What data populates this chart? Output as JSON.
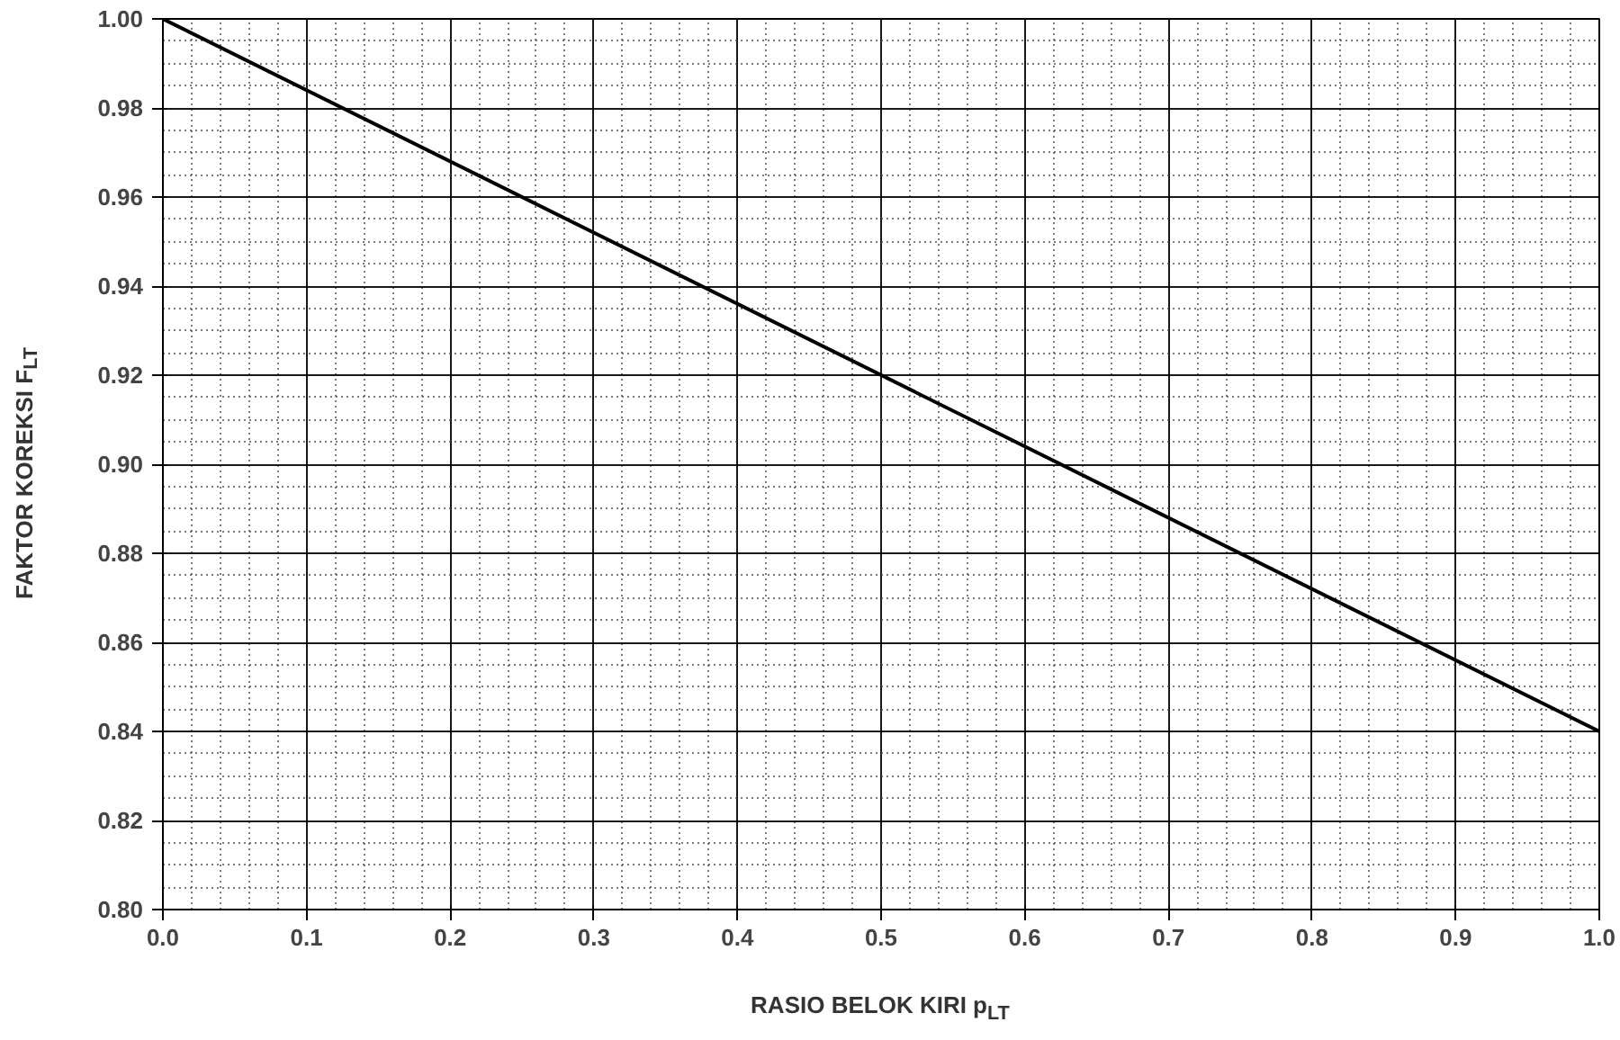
{
  "chart_data": {
    "type": "line",
    "xlabel": "RASIO BELOK KIRI p$_{LT}$",
    "ylabel": "FAKTOR KOREKSI F$_{LT}$",
    "x": [
      0.0,
      1.0
    ],
    "series": [
      {
        "color": "#000000",
        "values": [
          1.0,
          0.84
        ]
      }
    ],
    "xlim": [
      0.0,
      1.0
    ],
    "ylim": [
      0.8,
      1.0
    ],
    "xticks": [
      {
        "value": 0,
        "label": "0.0"
      },
      {
        "value": 0.1,
        "label": "0.1"
      },
      {
        "value": 0.2,
        "label": "0.2"
      },
      {
        "value": 0.3,
        "label": "0.3"
      },
      {
        "value": 0.4,
        "label": "0.4"
      },
      {
        "value": 0.5,
        "label": "0.5"
      },
      {
        "value": 0.6,
        "label": "0.6"
      },
      {
        "value": 0.7,
        "label": "0.7"
      },
      {
        "value": 0.8,
        "label": "0.8"
      },
      {
        "value": 0.9,
        "label": "0.9"
      },
      {
        "value": 1,
        "label": "1.0"
      }
    ],
    "yticks": [
      {
        "value": 0.8,
        "label": "0.80"
      },
      {
        "value": 0.82,
        "label": "0.82"
      },
      {
        "value": 0.84,
        "label": "0.84"
      },
      {
        "value": 0.86,
        "label": "0.86"
      },
      {
        "value": 0.88,
        "label": "0.88"
      },
      {
        "value": 0.9,
        "label": "0.90"
      },
      {
        "value": 0.92,
        "label": "0.92"
      },
      {
        "value": 0.94,
        "label": "0.94"
      },
      {
        "value": 0.96,
        "label": "0.96"
      },
      {
        "value": 0.98,
        "label": "0.98"
      },
      {
        "value": 1,
        "label": "1.00"
      }
    ],
    "grid": true,
    "marker": "none",
    "line_style": "solid"
  }
}
